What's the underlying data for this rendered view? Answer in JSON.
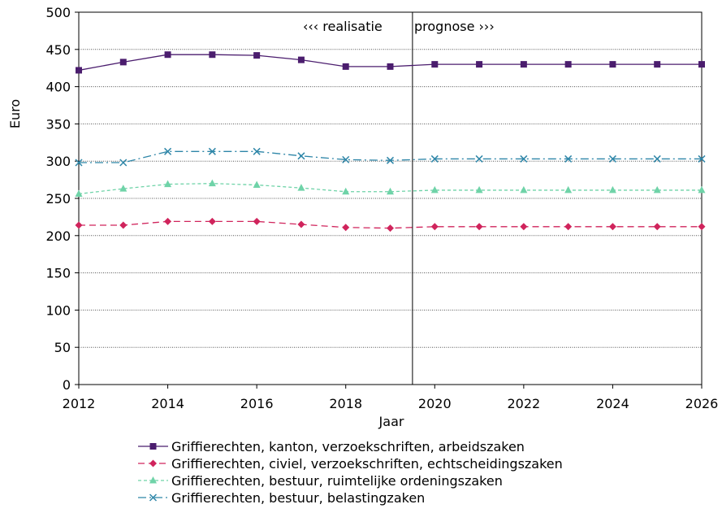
{
  "chart_data": {
    "type": "line",
    "xlabel": "Jaar",
    "ylabel": "Euro",
    "xlim": [
      2012,
      2026
    ],
    "ylim": [
      0,
      500
    ],
    "x_ticks": [
      2012,
      2014,
      2016,
      2018,
      2020,
      2022,
      2024,
      2026
    ],
    "y_ticks": [
      0,
      50,
      100,
      150,
      200,
      250,
      300,
      350,
      400,
      450,
      500
    ],
    "grid": "horizontal-dotted",
    "divider_x": 2019.5,
    "annotations": {
      "left": "‹‹‹ realisatie",
      "right": "prognose ›››"
    },
    "legend_position": "bottom",
    "x": [
      2012,
      2013,
      2014,
      2015,
      2016,
      2017,
      2018,
      2019,
      2020,
      2021,
      2022,
      2023,
      2024,
      2025,
      2026
    ],
    "series": [
      {
        "name": "Griffierechten, kanton, verzoekschriften, arbeidszaken",
        "color": "#4b1d6e",
        "marker": "square",
        "dash": "",
        "values": [
          422,
          433,
          443,
          443,
          442,
          436,
          427,
          427,
          430,
          430,
          430,
          430,
          430,
          430,
          430
        ]
      },
      {
        "name": "Griffierechten, civiel, verzoekschriften, echtscheidingszaken",
        "color": "#d0245c",
        "marker": "diamond",
        "dash": "8,5",
        "values": [
          214,
          214,
          219,
          219,
          219,
          215,
          211,
          210,
          212,
          212,
          212,
          212,
          212,
          212,
          212
        ]
      },
      {
        "name": "Griffierechten, bestuur, ruimtelijke ordeningszaken",
        "color": "#6fd3a8",
        "marker": "triangle",
        "dash": "4,3",
        "values": [
          256,
          263,
          269,
          270,
          268,
          264,
          259,
          259,
          261,
          261,
          261,
          261,
          261,
          261,
          261
        ]
      },
      {
        "name": "Griffierechten, bestuur, belastingzaken",
        "color": "#2e86a8",
        "marker": "x",
        "dash": "10,4,2,4",
        "values": [
          298,
          298,
          313,
          313,
          313,
          307,
          302,
          301,
          303,
          303,
          303,
          303,
          303,
          303,
          303
        ]
      }
    ]
  }
}
